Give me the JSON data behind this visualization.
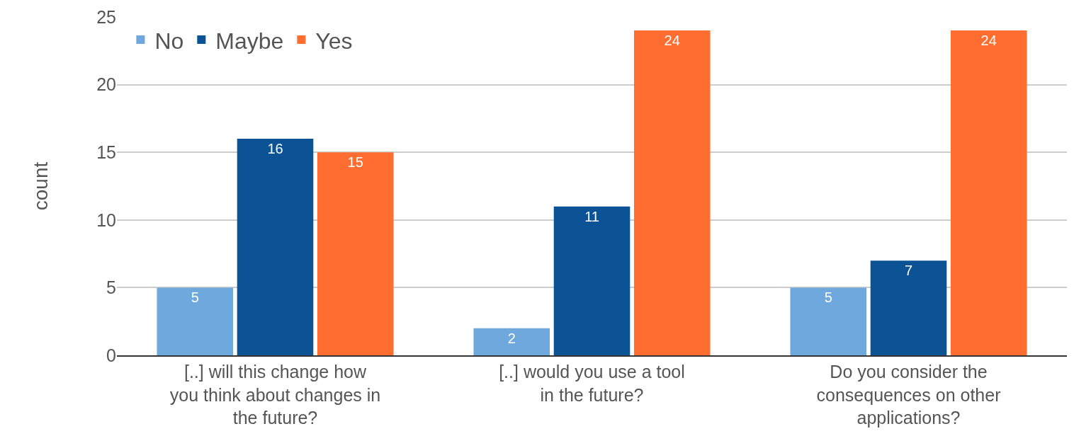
{
  "chart_data": {
    "type": "bar",
    "ylabel": "count",
    "categories": [
      "[..] will this change how you think about changes in the future?",
      "[..] would you use a tool in the future?",
      "Do you consider the consequences on other applications?"
    ],
    "series": [
      {
        "name": "No",
        "color": "#6fa8dc",
        "values": [
          5,
          2,
          5
        ]
      },
      {
        "name": "Maybe",
        "color": "#0b5394",
        "values": [
          16,
          11,
          7
        ]
      },
      {
        "name": "Yes",
        "color": "#ff6d31",
        "values": [
          15,
          24,
          24
        ]
      }
    ],
    "ylim": [
      0,
      25
    ],
    "yticks": [
      0,
      5,
      10,
      15,
      20,
      25
    ],
    "grid": "y",
    "legend": "top left",
    "data_labels": true
  }
}
